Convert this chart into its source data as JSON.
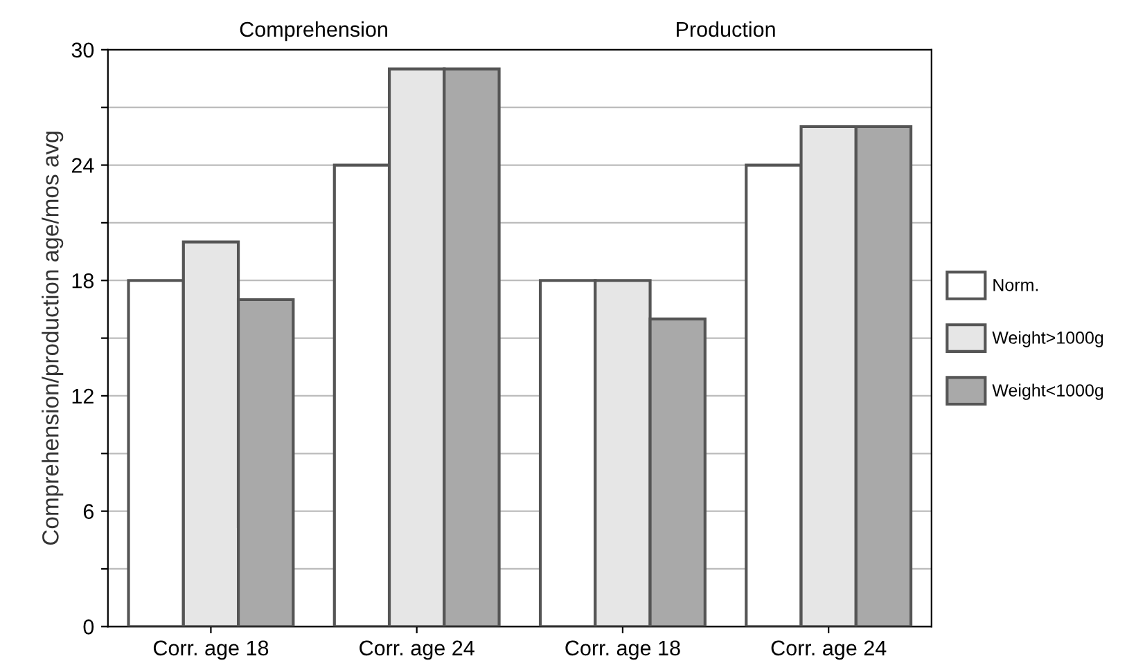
{
  "chart_data": {
    "type": "bar",
    "ylabel": "Comprehension/production age/mos avg",
    "categories": [
      "Corr. age 18",
      "Corr. age 24",
      "Corr. age 18",
      "Corr. age 24"
    ],
    "series": [
      {
        "name": "Norm.",
        "color": "#ffffff",
        "values": [
          18,
          24,
          18,
          24
        ]
      },
      {
        "name": "Weight>1000g",
        "color": "#e6e6e6",
        "values": [
          20,
          29,
          18,
          26
        ]
      },
      {
        "name": "Weight<1000g",
        "color": "#a9a9a9",
        "values": [
          17,
          29,
          16,
          26
        ]
      }
    ],
    "annotations": [
      "Comprehension",
      "Production"
    ],
    "ylim": [
      0,
      30
    ],
    "yticks": [
      0,
      {
        "value": 3,
        "label": null
      },
      6,
      {
        "value": 9,
        "label": null
      },
      12,
      {
        "value": 15,
        "label": null
      },
      18,
      {
        "value": 21,
        "label": null
      },
      24,
      {
        "value": 27,
        "label": null
      },
      30
    ],
    "grid": "y",
    "legend": "right"
  }
}
